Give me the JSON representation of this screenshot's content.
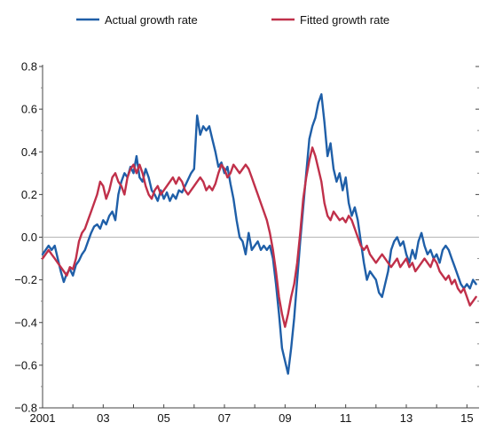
{
  "chart_data": {
    "type": "line",
    "title": "",
    "xlabel": "",
    "ylabel": "",
    "xlim": [
      2001.0,
      2015.4
    ],
    "ylim": [
      -0.8,
      0.8
    ],
    "grid": false,
    "zero_line": true,
    "legend": "top",
    "x_tick_labels": [
      {
        "x": 2001,
        "label": "2001"
      },
      {
        "x": 2003,
        "label": "03"
      },
      {
        "x": 2005,
        "label": "05"
      },
      {
        "x": 2007,
        "label": "07"
      },
      {
        "x": 2009,
        "label": "09"
      },
      {
        "x": 2011,
        "label": "11"
      },
      {
        "x": 2013,
        "label": "13"
      },
      {
        "x": 2015,
        "label": "15"
      }
    ],
    "y_tick_labels": [
      {
        "y": 0.8,
        "label": "0.8"
      },
      {
        "y": 0.6,
        "label": "0.6"
      },
      {
        "y": 0.4,
        "label": "0.4"
      },
      {
        "y": 0.2,
        "label": "0.2"
      },
      {
        "y": 0.0,
        "label": "0.0"
      },
      {
        "y": -0.2,
        "label": "−0.2"
      },
      {
        "y": -0.4,
        "label": "−0.4"
      },
      {
        "y": -0.6,
        "label": "−0.6"
      },
      {
        "y": -0.8,
        "label": "−0.8"
      }
    ],
    "series": [
      {
        "name": "Actual growth rate",
        "color": "#1f5fa8",
        "points": [
          [
            2001.0,
            -0.08
          ],
          [
            2001.1,
            -0.06
          ],
          [
            2001.2,
            -0.04
          ],
          [
            2001.3,
            -0.06
          ],
          [
            2001.4,
            -0.04
          ],
          [
            2001.5,
            -0.1
          ],
          [
            2001.6,
            -0.16
          ],
          [
            2001.7,
            -0.21
          ],
          [
            2001.8,
            -0.17
          ],
          [
            2001.9,
            -0.15
          ],
          [
            2002.0,
            -0.18
          ],
          [
            2002.1,
            -0.13
          ],
          [
            2002.2,
            -0.11
          ],
          [
            2002.3,
            -0.08
          ],
          [
            2002.4,
            -0.06
          ],
          [
            2002.5,
            -0.02
          ],
          [
            2002.6,
            0.02
          ],
          [
            2002.7,
            0.05
          ],
          [
            2002.8,
            0.06
          ],
          [
            2002.9,
            0.04
          ],
          [
            2003.0,
            0.08
          ],
          [
            2003.1,
            0.06
          ],
          [
            2003.2,
            0.1
          ],
          [
            2003.3,
            0.12
          ],
          [
            2003.4,
            0.08
          ],
          [
            2003.5,
            0.2
          ],
          [
            2003.6,
            0.26
          ],
          [
            2003.7,
            0.3
          ],
          [
            2003.8,
            0.28
          ],
          [
            2003.9,
            0.33
          ],
          [
            2004.0,
            0.3
          ],
          [
            2004.1,
            0.38
          ],
          [
            2004.2,
            0.28
          ],
          [
            2004.3,
            0.26
          ],
          [
            2004.4,
            0.32
          ],
          [
            2004.5,
            0.28
          ],
          [
            2004.6,
            0.22
          ],
          [
            2004.7,
            0.2
          ],
          [
            2004.8,
            0.17
          ],
          [
            2004.9,
            0.22
          ],
          [
            2005.0,
            0.18
          ],
          [
            2005.1,
            0.21
          ],
          [
            2005.2,
            0.17
          ],
          [
            2005.3,
            0.2
          ],
          [
            2005.4,
            0.18
          ],
          [
            2005.5,
            0.22
          ],
          [
            2005.6,
            0.21
          ],
          [
            2005.7,
            0.24
          ],
          [
            2005.8,
            0.27
          ],
          [
            2005.9,
            0.3
          ],
          [
            2006.0,
            0.32
          ],
          [
            2006.1,
            0.57
          ],
          [
            2006.2,
            0.48
          ],
          [
            2006.3,
            0.52
          ],
          [
            2006.4,
            0.5
          ],
          [
            2006.5,
            0.52
          ],
          [
            2006.6,
            0.46
          ],
          [
            2006.7,
            0.4
          ],
          [
            2006.8,
            0.33
          ],
          [
            2006.9,
            0.35
          ],
          [
            2007.0,
            0.3
          ],
          [
            2007.1,
            0.33
          ],
          [
            2007.2,
            0.25
          ],
          [
            2007.3,
            0.18
          ],
          [
            2007.4,
            0.08
          ],
          [
            2007.5,
            0.0
          ],
          [
            2007.6,
            -0.02
          ],
          [
            2007.7,
            -0.08
          ],
          [
            2007.8,
            0.02
          ],
          [
            2007.9,
            -0.06
          ],
          [
            2008.0,
            -0.04
          ],
          [
            2008.1,
            -0.02
          ],
          [
            2008.2,
            -0.06
          ],
          [
            2008.3,
            -0.04
          ],
          [
            2008.4,
            -0.06
          ],
          [
            2008.5,
            -0.04
          ],
          [
            2008.6,
            -0.1
          ],
          [
            2008.7,
            -0.22
          ],
          [
            2008.8,
            -0.36
          ],
          [
            2008.9,
            -0.52
          ],
          [
            2009.0,
            -0.58
          ],
          [
            2009.1,
            -0.64
          ],
          [
            2009.2,
            -0.52
          ],
          [
            2009.3,
            -0.38
          ],
          [
            2009.4,
            -0.2
          ],
          [
            2009.5,
            -0.02
          ],
          [
            2009.6,
            0.14
          ],
          [
            2009.7,
            0.3
          ],
          [
            2009.8,
            0.46
          ],
          [
            2009.9,
            0.52
          ],
          [
            2010.0,
            0.56
          ],
          [
            2010.1,
            0.63
          ],
          [
            2010.2,
            0.67
          ],
          [
            2010.3,
            0.54
          ],
          [
            2010.4,
            0.38
          ],
          [
            2010.5,
            0.44
          ],
          [
            2010.6,
            0.32
          ],
          [
            2010.7,
            0.26
          ],
          [
            2010.8,
            0.3
          ],
          [
            2010.9,
            0.22
          ],
          [
            2011.0,
            0.28
          ],
          [
            2011.1,
            0.16
          ],
          [
            2011.2,
            0.1
          ],
          [
            2011.3,
            0.14
          ],
          [
            2011.4,
            0.08
          ],
          [
            2011.5,
            -0.02
          ],
          [
            2011.6,
            -0.12
          ],
          [
            2011.7,
            -0.2
          ],
          [
            2011.8,
            -0.16
          ],
          [
            2011.9,
            -0.18
          ],
          [
            2012.0,
            -0.2
          ],
          [
            2012.1,
            -0.26
          ],
          [
            2012.2,
            -0.28
          ],
          [
            2012.3,
            -0.22
          ],
          [
            2012.4,
            -0.16
          ],
          [
            2012.5,
            -0.06
          ],
          [
            2012.6,
            -0.02
          ],
          [
            2012.7,
            0.0
          ],
          [
            2012.8,
            -0.04
          ],
          [
            2012.9,
            -0.02
          ],
          [
            2013.0,
            -0.08
          ],
          [
            2013.1,
            -0.12
          ],
          [
            2013.2,
            -0.06
          ],
          [
            2013.3,
            -0.1
          ],
          [
            2013.4,
            -0.02
          ],
          [
            2013.5,
            0.02
          ],
          [
            2013.6,
            -0.04
          ],
          [
            2013.7,
            -0.08
          ],
          [
            2013.8,
            -0.06
          ],
          [
            2013.9,
            -0.1
          ],
          [
            2014.0,
            -0.08
          ],
          [
            2014.1,
            -0.12
          ],
          [
            2014.2,
            -0.06
          ],
          [
            2014.3,
            -0.04
          ],
          [
            2014.4,
            -0.06
          ],
          [
            2014.5,
            -0.1
          ],
          [
            2014.6,
            -0.14
          ],
          [
            2014.7,
            -0.18
          ],
          [
            2014.8,
            -0.22
          ],
          [
            2014.9,
            -0.24
          ],
          [
            2015.0,
            -0.22
          ],
          [
            2015.1,
            -0.24
          ],
          [
            2015.2,
            -0.2
          ],
          [
            2015.3,
            -0.22
          ]
        ]
      },
      {
        "name": "Fitted growth rate",
        "color": "#c0304a",
        "points": [
          [
            2001.0,
            -0.1
          ],
          [
            2001.1,
            -0.08
          ],
          [
            2001.2,
            -0.06
          ],
          [
            2001.3,
            -0.08
          ],
          [
            2001.4,
            -0.1
          ],
          [
            2001.5,
            -0.12
          ],
          [
            2001.6,
            -0.14
          ],
          [
            2001.7,
            -0.16
          ],
          [
            2001.8,
            -0.18
          ],
          [
            2001.9,
            -0.14
          ],
          [
            2002.0,
            -0.15
          ],
          [
            2002.1,
            -0.1
          ],
          [
            2002.2,
            -0.02
          ],
          [
            2002.3,
            0.02
          ],
          [
            2002.4,
            0.04
          ],
          [
            2002.5,
            0.08
          ],
          [
            2002.6,
            0.12
          ],
          [
            2002.7,
            0.16
          ],
          [
            2002.8,
            0.2
          ],
          [
            2002.9,
            0.26
          ],
          [
            2003.0,
            0.24
          ],
          [
            2003.1,
            0.18
          ],
          [
            2003.2,
            0.22
          ],
          [
            2003.3,
            0.28
          ],
          [
            2003.4,
            0.3
          ],
          [
            2003.5,
            0.26
          ],
          [
            2003.6,
            0.24
          ],
          [
            2003.7,
            0.2
          ],
          [
            2003.8,
            0.28
          ],
          [
            2003.9,
            0.32
          ],
          [
            2004.0,
            0.34
          ],
          [
            2004.1,
            0.3
          ],
          [
            2004.2,
            0.34
          ],
          [
            2004.3,
            0.3
          ],
          [
            2004.4,
            0.24
          ],
          [
            2004.5,
            0.2
          ],
          [
            2004.6,
            0.18
          ],
          [
            2004.7,
            0.22
          ],
          [
            2004.8,
            0.24
          ],
          [
            2004.9,
            0.2
          ],
          [
            2005.0,
            0.22
          ],
          [
            2005.1,
            0.24
          ],
          [
            2005.2,
            0.26
          ],
          [
            2005.3,
            0.28
          ],
          [
            2005.4,
            0.25
          ],
          [
            2005.5,
            0.28
          ],
          [
            2005.6,
            0.26
          ],
          [
            2005.7,
            0.22
          ],
          [
            2005.8,
            0.2
          ],
          [
            2005.9,
            0.22
          ],
          [
            2006.0,
            0.24
          ],
          [
            2006.1,
            0.26
          ],
          [
            2006.2,
            0.28
          ],
          [
            2006.3,
            0.26
          ],
          [
            2006.4,
            0.22
          ],
          [
            2006.5,
            0.24
          ],
          [
            2006.6,
            0.22
          ],
          [
            2006.7,
            0.25
          ],
          [
            2006.8,
            0.3
          ],
          [
            2006.9,
            0.34
          ],
          [
            2007.0,
            0.32
          ],
          [
            2007.1,
            0.28
          ],
          [
            2007.2,
            0.3
          ],
          [
            2007.3,
            0.34
          ],
          [
            2007.4,
            0.32
          ],
          [
            2007.5,
            0.3
          ],
          [
            2007.6,
            0.32
          ],
          [
            2007.7,
            0.34
          ],
          [
            2007.8,
            0.32
          ],
          [
            2007.9,
            0.28
          ],
          [
            2008.0,
            0.24
          ],
          [
            2008.1,
            0.2
          ],
          [
            2008.2,
            0.16
          ],
          [
            2008.3,
            0.12
          ],
          [
            2008.4,
            0.08
          ],
          [
            2008.5,
            0.02
          ],
          [
            2008.6,
            -0.06
          ],
          [
            2008.7,
            -0.16
          ],
          [
            2008.8,
            -0.28
          ],
          [
            2008.9,
            -0.36
          ],
          [
            2009.0,
            -0.42
          ],
          [
            2009.1,
            -0.36
          ],
          [
            2009.2,
            -0.28
          ],
          [
            2009.3,
            -0.22
          ],
          [
            2009.4,
            -0.12
          ],
          [
            2009.5,
            0.02
          ],
          [
            2009.6,
            0.18
          ],
          [
            2009.7,
            0.28
          ],
          [
            2009.8,
            0.36
          ],
          [
            2009.9,
            0.42
          ],
          [
            2010.0,
            0.38
          ],
          [
            2010.1,
            0.32
          ],
          [
            2010.2,
            0.26
          ],
          [
            2010.3,
            0.16
          ],
          [
            2010.4,
            0.1
          ],
          [
            2010.5,
            0.08
          ],
          [
            2010.6,
            0.12
          ],
          [
            2010.7,
            0.1
          ],
          [
            2010.8,
            0.08
          ],
          [
            2010.9,
            0.09
          ],
          [
            2011.0,
            0.07
          ],
          [
            2011.1,
            0.1
          ],
          [
            2011.2,
            0.08
          ],
          [
            2011.3,
            0.04
          ],
          [
            2011.4,
            0.0
          ],
          [
            2011.5,
            -0.04
          ],
          [
            2011.6,
            -0.06
          ],
          [
            2011.7,
            -0.04
          ],
          [
            2011.8,
            -0.08
          ],
          [
            2011.9,
            -0.1
          ],
          [
            2012.0,
            -0.12
          ],
          [
            2012.1,
            -0.1
          ],
          [
            2012.2,
            -0.08
          ],
          [
            2012.3,
            -0.1
          ],
          [
            2012.4,
            -0.12
          ],
          [
            2012.5,
            -0.14
          ],
          [
            2012.6,
            -0.12
          ],
          [
            2012.7,
            -0.1
          ],
          [
            2012.8,
            -0.14
          ],
          [
            2012.9,
            -0.12
          ],
          [
            2013.0,
            -0.1
          ],
          [
            2013.1,
            -0.14
          ],
          [
            2013.2,
            -0.12
          ],
          [
            2013.3,
            -0.16
          ],
          [
            2013.4,
            -0.14
          ],
          [
            2013.5,
            -0.12
          ],
          [
            2013.6,
            -0.1
          ],
          [
            2013.7,
            -0.12
          ],
          [
            2013.8,
            -0.14
          ],
          [
            2013.9,
            -0.1
          ],
          [
            2014.0,
            -0.12
          ],
          [
            2014.1,
            -0.16
          ],
          [
            2014.2,
            -0.18
          ],
          [
            2014.3,
            -0.2
          ],
          [
            2014.4,
            -0.18
          ],
          [
            2014.5,
            -0.22
          ],
          [
            2014.6,
            -0.2
          ],
          [
            2014.7,
            -0.24
          ],
          [
            2014.8,
            -0.26
          ],
          [
            2014.9,
            -0.24
          ],
          [
            2015.0,
            -0.28
          ],
          [
            2015.1,
            -0.32
          ],
          [
            2015.2,
            -0.3
          ],
          [
            2015.3,
            -0.28
          ]
        ]
      }
    ]
  }
}
